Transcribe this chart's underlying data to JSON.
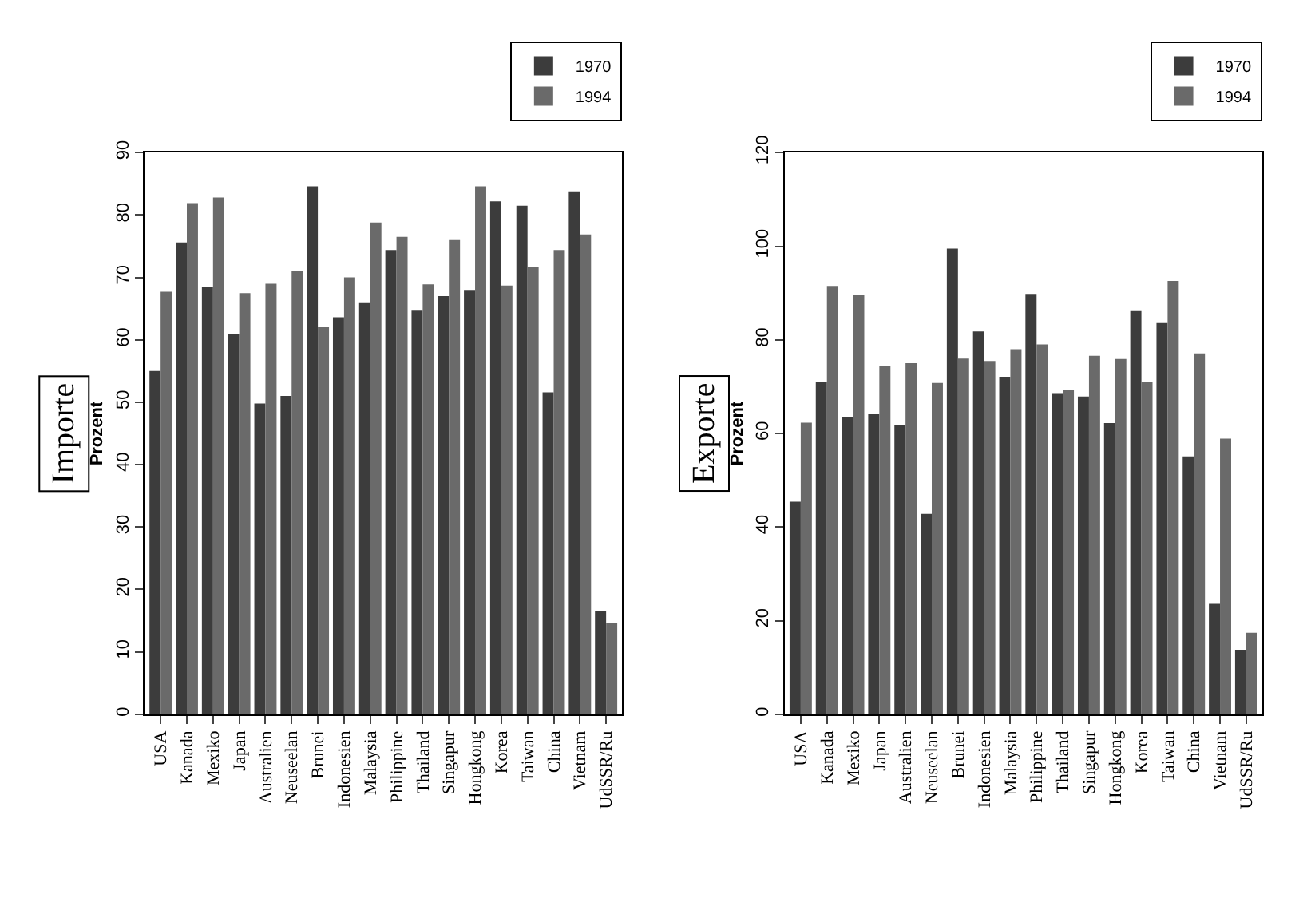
{
  "chart_data": [
    {
      "type": "bar",
      "title": "Importe",
      "ylabel": "Prozent",
      "categories": [
        "USA",
        "Kanada",
        "Mexiko",
        "Japan",
        "Australien",
        "Neuseelan",
        "Brunei",
        "Indonesien",
        "Malaysia",
        "Philippine",
        "Thailand",
        "Singapur",
        "Hongkong",
        "Korea",
        "Taiwan",
        "China",
        "Vietnam",
        "UdSSR/Ru"
      ],
      "series": [
        {
          "name": "1970",
          "color": "#3c3c3c",
          "values": [
            55,
            75.6,
            68.5,
            61,
            49.8,
            51,
            84.6,
            63.6,
            66,
            74.4,
            64.8,
            67,
            68,
            82.2,
            81.5,
            51.6,
            83.8,
            16.5
          ]
        },
        {
          "name": "1994",
          "color": "#6a6a6a",
          "values": [
            67.7,
            81.9,
            82.8,
            67.5,
            69,
            71,
            62,
            70,
            78.8,
            76.5,
            68.9,
            76,
            84.6,
            68.7,
            71.7,
            74.4,
            76.9,
            14.7
          ]
        }
      ],
      "ylim": [
        0,
        90
      ],
      "yticks": [
        0,
        10,
        20,
        30,
        40,
        50,
        60,
        70,
        80,
        90
      ],
      "legend": "top"
    },
    {
      "type": "bar",
      "title": "Exporte",
      "ylabel": "Prozent",
      "categories": [
        "USA",
        "Kanada",
        "Mexiko",
        "Japan",
        "Australien",
        "Neuseelan",
        "Brunei",
        "Indonesien",
        "Malaysia",
        "Philippine",
        "Thailand",
        "Singapur",
        "Hongkong",
        "Korea",
        "Taiwan",
        "China",
        "Vietnam",
        "UdSSR/Ru"
      ],
      "series": [
        {
          "name": "1970",
          "color": "#3c3c3c",
          "values": [
            45.4,
            70.9,
            63.4,
            64.1,
            61.8,
            42.8,
            99.5,
            81.8,
            72.1,
            89.8,
            68.6,
            67.9,
            62.2,
            86.3,
            83.6,
            55.1,
            23.6,
            13.8
          ]
        },
        {
          "name": "1994",
          "color": "#6a6a6a",
          "values": [
            62.3,
            91.5,
            89.7,
            74.5,
            75,
            70.8,
            76,
            75.5,
            78,
            79,
            69.3,
            76.6,
            75.9,
            71,
            92.6,
            77.1,
            58.9,
            17.4
          ]
        }
      ],
      "ylim": [
        0,
        120
      ],
      "yticks": [
        0,
        20,
        40,
        60,
        80,
        100,
        120
      ],
      "legend": "top"
    }
  ]
}
